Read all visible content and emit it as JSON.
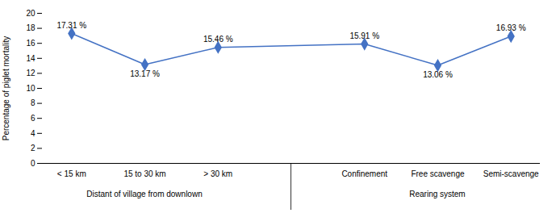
{
  "chart_data": {
    "type": "line",
    "categories": [
      "< 15 km",
      "15 to 30 km",
      "> 30 km",
      "Confinement",
      "Free scavenge",
      "Semi-scavenge"
    ],
    "values": [
      17.31,
      13.17,
      15.46,
      15.91,
      13.06,
      16.93
    ],
    "value_labels": [
      "17.31 %",
      "13.17 %",
      "15.46 %",
      "15.91 %",
      "13.06 %",
      "16.93 %"
    ],
    "data_labels": true,
    "groups": [
      {
        "label": "Distant of village from downlown",
        "categories": [
          "< 15 km",
          "15 to 30 km",
          "> 30 km"
        ]
      },
      {
        "label": "Rearing system",
        "categories": [
          "Confinement",
          "Free scavenge",
          "Semi-scavenge"
        ]
      }
    ],
    "ylabel": "Percentage of piglet mortality",
    "ylim": [
      0,
      20
    ],
    "yticks": [
      0,
      2,
      4,
      6,
      8,
      10,
      12,
      14,
      16,
      18,
      20
    ],
    "color": "#4472C4",
    "marker": "diamond",
    "grid": false
  }
}
